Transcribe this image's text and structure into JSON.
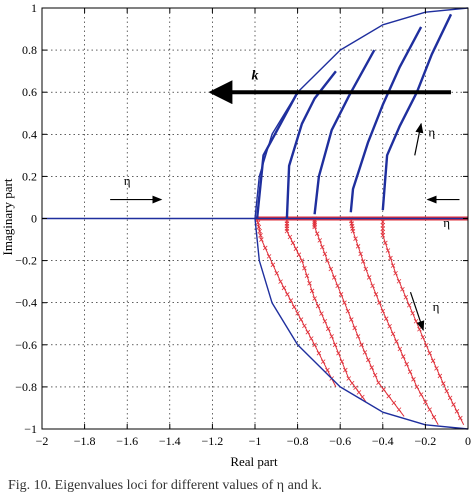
{
  "chart_data": {
    "type": "line",
    "xlabel": "Real part",
    "ylabel": "Imaginary part",
    "xlim": [
      -2,
      0
    ],
    "ylim": [
      -1,
      1
    ],
    "xticks": [
      -2,
      -1.8,
      -1.6,
      -1.4,
      -1.2,
      -1,
      -0.8,
      -0.6,
      -0.4,
      -0.2,
      0
    ],
    "yticks": [
      -1,
      -0.8,
      -0.6,
      -0.4,
      -0.2,
      0,
      0.2,
      0.4,
      0.6,
      0.8,
      1
    ],
    "xtick_labels": [
      "−2",
      "−1.8",
      "−1.6",
      "−1.4",
      "−1.2",
      "−1",
      "−0.8",
      "−0.6",
      "−0.4",
      "−0.2",
      "0"
    ],
    "ytick_labels": [
      "−1",
      "−0.8",
      "−0.6",
      "−0.4",
      "−0.2",
      "0",
      "0.2",
      "0.4",
      "0.6",
      "0.8",
      "1"
    ],
    "grid": true,
    "colors": {
      "upper": "#1f2f9e",
      "lower": "#e0303a",
      "axis": "#000000",
      "grid": "#000000"
    },
    "boundary": {
      "upper": [
        [
          -1,
          0
        ],
        [
          -0.98,
          0.2
        ],
        [
          -0.92,
          0.4
        ],
        [
          -0.8,
          0.6
        ],
        [
          -0.6,
          0.8
        ],
        [
          -0.4,
          0.92
        ],
        [
          -0.2,
          0.98
        ],
        [
          0,
          1
        ]
      ],
      "lower": [
        [
          -1,
          0
        ],
        [
          -0.98,
          -0.2
        ],
        [
          -0.92,
          -0.4
        ],
        [
          -0.8,
          -0.6
        ],
        [
          -0.6,
          -0.8
        ],
        [
          -0.4,
          -0.92
        ],
        [
          -0.2,
          -0.98
        ],
        [
          0,
          -1
        ]
      ]
    },
    "real_axis_line": [
      [
        -2,
        0
      ],
      [
        0,
        0
      ]
    ],
    "upper_branches": [
      [
        [
          -0.99,
          0.0
        ],
        [
          -0.96,
          0.3
        ],
        [
          -0.88,
          0.45
        ],
        [
          -0.8,
          0.6
        ]
      ],
      [
        [
          -0.85,
          0.0
        ],
        [
          -0.84,
          0.25
        ],
        [
          -0.78,
          0.45
        ],
        [
          -0.72,
          0.57
        ],
        [
          -0.62,
          0.7
        ]
      ],
      [
        [
          -0.72,
          0.02
        ],
        [
          -0.7,
          0.2
        ],
        [
          -0.64,
          0.42
        ],
        [
          -0.56,
          0.58
        ],
        [
          -0.44,
          0.8
        ]
      ],
      [
        [
          -0.55,
          0.03
        ],
        [
          -0.54,
          0.14
        ],
        [
          -0.47,
          0.36
        ],
        [
          -0.4,
          0.54
        ],
        [
          -0.32,
          0.72
        ],
        [
          -0.22,
          0.91
        ]
      ],
      [
        [
          -0.4,
          0.04
        ],
        [
          -0.38,
          0.3
        ],
        [
          -0.32,
          0.44
        ],
        [
          -0.24,
          0.6
        ],
        [
          -0.17,
          0.78
        ],
        [
          -0.08,
          0.97
        ]
      ]
    ],
    "lower_branches": [
      [
        [
          -0.99,
          0.0
        ],
        [
          -0.97,
          -0.1
        ],
        [
          -0.88,
          -0.3
        ],
        [
          -0.8,
          -0.45
        ],
        [
          -0.72,
          -0.6
        ],
        [
          -0.62,
          -0.8
        ]
      ],
      [
        [
          -0.85,
          0.0
        ],
        [
          -0.85,
          -0.06
        ],
        [
          -0.78,
          -0.2
        ],
        [
          -0.72,
          -0.38
        ],
        [
          -0.64,
          -0.56
        ],
        [
          -0.56,
          -0.76
        ],
        [
          -0.48,
          -0.87
        ]
      ],
      [
        [
          -0.72,
          0.0
        ],
        [
          -0.72,
          -0.04
        ],
        [
          -0.66,
          -0.2
        ],
        [
          -0.58,
          -0.4
        ],
        [
          -0.5,
          -0.6
        ],
        [
          -0.42,
          -0.78
        ],
        [
          -0.3,
          -0.94
        ]
      ],
      [
        [
          -0.55,
          0.0
        ],
        [
          -0.54,
          -0.06
        ],
        [
          -0.48,
          -0.24
        ],
        [
          -0.4,
          -0.44
        ],
        [
          -0.32,
          -0.62
        ],
        [
          -0.24,
          -0.8
        ],
        [
          -0.14,
          -0.98
        ]
      ],
      [
        [
          -0.4,
          0.0
        ],
        [
          -0.4,
          -0.08
        ],
        [
          -0.34,
          -0.26
        ],
        [
          -0.26,
          -0.45
        ],
        [
          -0.18,
          -0.64
        ],
        [
          -0.1,
          -0.82
        ],
        [
          -0.02,
          -0.98
        ]
      ]
    ],
    "red_axis_segment": [
      [
        -1,
        0
      ],
      [
        0,
        0
      ]
    ],
    "annotations": [
      {
        "text": "k",
        "x": -1.0,
        "y": 0.66,
        "style": "bold"
      },
      {
        "text": "η",
        "x": -1.6,
        "y": 0.16,
        "style": "normal"
      },
      {
        "text": "η",
        "x": -0.17,
        "y": 0.39,
        "style": "normal"
      },
      {
        "text": "η",
        "x": -0.1,
        "y": -0.04,
        "style": "normal"
      },
      {
        "text": "η",
        "x": -0.15,
        "y": -0.44,
        "style": "normal"
      }
    ],
    "arrows": [
      {
        "from": [
          -0.08,
          0.6
        ],
        "to": [
          -1.2,
          0.6
        ],
        "weight": "heavy"
      },
      {
        "from": [
          -1.68,
          0.09
        ],
        "to": [
          -1.44,
          0.09
        ],
        "weight": "light"
      },
      {
        "from": [
          -0.25,
          0.3
        ],
        "to": [
          -0.22,
          0.45
        ],
        "weight": "light"
      },
      {
        "from": [
          -0.04,
          0.09
        ],
        "to": [
          -0.19,
          0.09
        ],
        "weight": "light"
      },
      {
        "from": [
          -0.27,
          -0.35
        ],
        "to": [
          -0.21,
          -0.53
        ],
        "weight": "light"
      }
    ]
  },
  "caption": "Fig. 10.   Eigenvalues loci for different values of η and k."
}
